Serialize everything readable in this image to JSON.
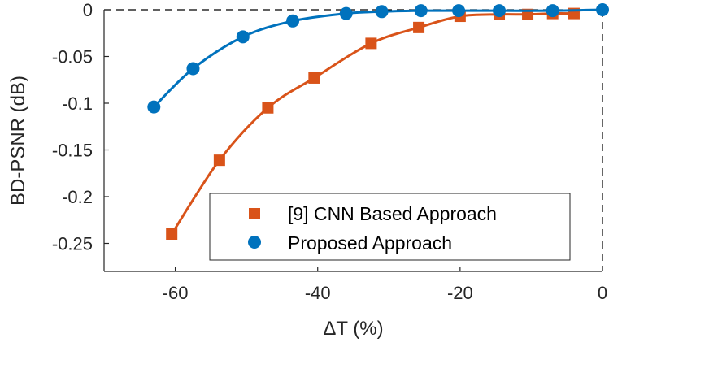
{
  "chart_data": {
    "type": "line",
    "title": "",
    "xlabel": "ΔT (%)",
    "ylabel": "BD-PSNR (dB)",
    "xlim": [
      -70,
      0
    ],
    "ylim": [
      -0.28,
      0
    ],
    "xticks": [
      -60,
      -40,
      -20,
      0
    ],
    "xtick_labels": [
      "-60",
      "-40",
      "-20",
      "0"
    ],
    "yticks": [
      0,
      -0.05,
      -0.1,
      -0.15,
      -0.2,
      -0.25
    ],
    "ytick_labels": [
      "0",
      "-0.05",
      "-0.1",
      "-0.15",
      "-0.2",
      "-0.25"
    ],
    "grid": false,
    "legend_position": "bottom-right",
    "series": [
      {
        "name": "[9] CNN Based Approach",
        "color": "#D95319",
        "marker": "square",
        "x": [
          -60.5,
          -53.8,
          -47.0,
          -40.5,
          -32.5,
          -25.8,
          -20.0,
          -14.5,
          -10.5,
          -7.0,
          -4.0
        ],
        "y": [
          -0.24,
          -0.161,
          -0.105,
          -0.073,
          -0.036,
          -0.019,
          -0.007,
          -0.005,
          -0.005,
          -0.004,
          -0.004
        ]
      },
      {
        "name": "Proposed Approach",
        "color": "#0072BD",
        "marker": "circle",
        "x": [
          -63.0,
          -57.5,
          -50.5,
          -43.5,
          -36.0,
          -31.0,
          -25.5,
          -20.2,
          -14.5,
          -7.0,
          0.0
        ],
        "y": [
          -0.104,
          -0.063,
          -0.029,
          -0.012,
          -0.004,
          -0.002,
          -0.001,
          -0.001,
          -0.001,
          -0.001,
          0.0
        ]
      }
    ]
  }
}
